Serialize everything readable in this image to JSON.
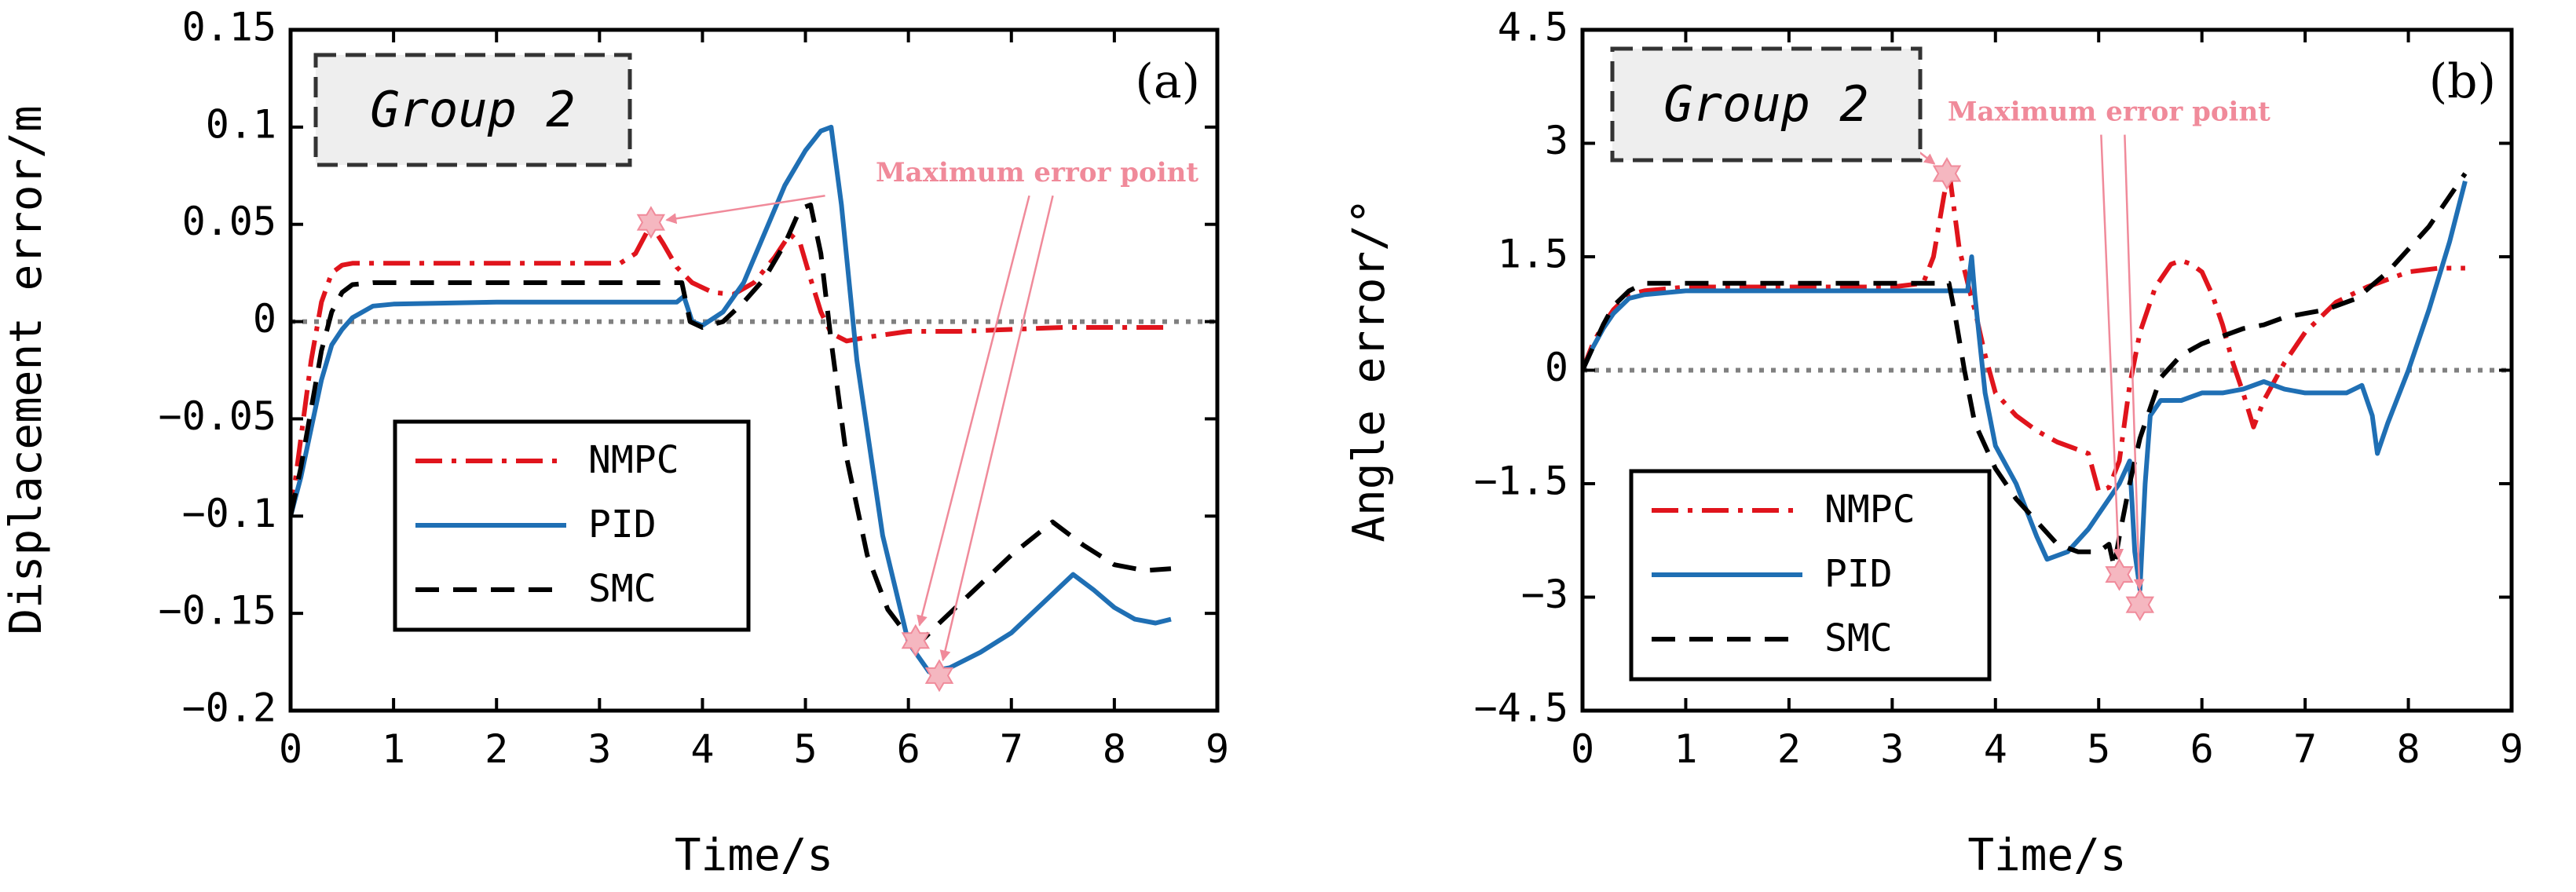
{
  "colors": {
    "NMPC": "#e0141c",
    "PID": "#1f6fb4",
    "SMC": "#000000",
    "zero_line": "#808080",
    "annotation": "#f08a9a",
    "marker": "#f5b7c0",
    "group_box_fill": "#eeeeee"
  },
  "chart_data": [
    {
      "type": "line",
      "panel_tag": "(a)",
      "group_label": "Group 2",
      "xlabel": "Time/s",
      "ylabel": "Displacement error/m",
      "xlim": [
        0,
        9
      ],
      "ylim": [
        -0.2,
        0.15
      ],
      "xticks": [
        0,
        1,
        2,
        3,
        4,
        5,
        6,
        7,
        8,
        9
      ],
      "xtick_labels": [
        "0",
        "1",
        "2",
        "3",
        "4",
        "5",
        "6",
        "7",
        "8",
        "9"
      ],
      "yticks": [
        -0.2,
        -0.15,
        -0.1,
        -0.05,
        0,
        0.05,
        0.1,
        0.15
      ],
      "ytick_labels": [
        "−0.2",
        "−0.15",
        "−0.1",
        "−0.05",
        "0",
        "0.05",
        "0.1",
        "0.15"
      ],
      "grid": false,
      "zero_reference": 0,
      "legend_position": "lower-left",
      "series": [
        {
          "name": "NMPC",
          "style": "dashdot",
          "x": [
            0,
            0.1,
            0.2,
            0.3,
            0.4,
            0.5,
            0.6,
            0.8,
            1.0,
            2.0,
            3.0,
            3.2,
            3.35,
            3.5,
            3.62,
            3.75,
            3.9,
            4.1,
            4.3,
            4.5,
            4.7,
            4.85,
            4.95,
            5.05,
            5.15,
            5.25,
            5.4,
            5.6,
            6.0,
            6.5,
            7.0,
            7.5,
            8.0,
            8.55
          ],
          "y": [
            -0.1,
            -0.06,
            -0.02,
            0.01,
            0.025,
            0.029,
            0.03,
            0.03,
            0.03,
            0.03,
            0.03,
            0.03,
            0.035,
            0.05,
            0.04,
            0.028,
            0.02,
            0.015,
            0.014,
            0.02,
            0.033,
            0.045,
            0.04,
            0.022,
            0.005,
            -0.006,
            -0.01,
            -0.008,
            -0.005,
            -0.005,
            -0.004,
            -0.003,
            -0.003,
            -0.003
          ]
        },
        {
          "name": "PID",
          "style": "solid",
          "x": [
            0,
            0.1,
            0.2,
            0.3,
            0.4,
            0.5,
            0.6,
            0.8,
            1.0,
            2.0,
            3.0,
            3.5,
            3.75,
            3.82,
            3.9,
            4.0,
            4.2,
            4.4,
            4.6,
            4.8,
            5.0,
            5.15,
            5.25,
            5.35,
            5.5,
            5.75,
            6.0,
            6.2,
            6.4,
            6.7,
            7.0,
            7.3,
            7.6,
            7.8,
            8.0,
            8.2,
            8.4,
            8.55
          ],
          "y": [
            -0.1,
            -0.08,
            -0.055,
            -0.03,
            -0.012,
            -0.004,
            0.002,
            0.008,
            0.009,
            0.01,
            0.01,
            0.01,
            0.01,
            0.013,
            0.0,
            -0.002,
            0.005,
            0.02,
            0.045,
            0.07,
            0.088,
            0.098,
            0.1,
            0.06,
            -0.02,
            -0.11,
            -0.165,
            -0.18,
            -0.178,
            -0.17,
            -0.16,
            -0.145,
            -0.13,
            -0.138,
            -0.147,
            -0.153,
            -0.155,
            -0.153
          ]
        },
        {
          "name": "SMC",
          "style": "dashed",
          "x": [
            0,
            0.1,
            0.2,
            0.3,
            0.4,
            0.5,
            0.6,
            0.8,
            1.0,
            2.0,
            3.0,
            3.5,
            3.8,
            3.88,
            4.0,
            4.2,
            4.4,
            4.6,
            4.8,
            4.95,
            5.05,
            5.15,
            5.25,
            5.4,
            5.6,
            5.8,
            6.0,
            6.15,
            6.3,
            6.6,
            7.0,
            7.4,
            7.7,
            8.0,
            8.3,
            8.55
          ],
          "y": [
            -0.1,
            -0.075,
            -0.045,
            -0.015,
            0.005,
            0.015,
            0.019,
            0.02,
            0.02,
            0.02,
            0.02,
            0.02,
            0.02,
            0.0,
            -0.003,
            0.0,
            0.01,
            0.022,
            0.04,
            0.058,
            0.06,
            0.035,
            -0.01,
            -0.07,
            -0.12,
            -0.148,
            -0.162,
            -0.163,
            -0.155,
            -0.14,
            -0.12,
            -0.103,
            -0.115,
            -0.125,
            -0.128,
            -0.127
          ]
        }
      ],
      "max_error_points": [
        {
          "x": 3.5,
          "y": 0.051
        },
        {
          "x": 6.07,
          "y": -0.164
        },
        {
          "x": 6.3,
          "y": -0.182
        }
      ],
      "annotation": {
        "text": "Maximum error point",
        "x": 7.25,
        "y": 0.072
      }
    },
    {
      "type": "line",
      "panel_tag": "(b)",
      "group_label": "Group 2",
      "xlabel": "Time/s",
      "ylabel": "Angle error/°",
      "xlim": [
        0,
        9
      ],
      "ylim": [
        -4.5,
        4.5
      ],
      "xticks": [
        0,
        1,
        2,
        3,
        4,
        5,
        6,
        7,
        8,
        9
      ],
      "xtick_labels": [
        "0",
        "1",
        "2",
        "3",
        "4",
        "5",
        "6",
        "7",
        "8",
        "9"
      ],
      "yticks": [
        -4.5,
        -3,
        -1.5,
        0,
        1.5,
        3,
        4.5
      ],
      "ytick_labels": [
        "−4.5",
        "−3",
        "−1.5",
        "0",
        "1.5",
        "3",
        "4.5"
      ],
      "grid": false,
      "zero_reference": 0,
      "legend_position": "lower-left",
      "series": [
        {
          "name": "NMPC",
          "style": "dashdot",
          "x": [
            0,
            0.1,
            0.2,
            0.3,
            0.45,
            0.6,
            1.0,
            2.0,
            3.0,
            3.3,
            3.4,
            3.5,
            3.55,
            3.65,
            3.75,
            3.8,
            3.9,
            4.0,
            4.2,
            4.4,
            4.6,
            4.8,
            4.9,
            5.0,
            5.1,
            5.2,
            5.25,
            5.3,
            5.4,
            5.55,
            5.7,
            5.8,
            5.9,
            6.0,
            6.1,
            6.2,
            6.3,
            6.4,
            6.5,
            6.6,
            6.8,
            7.0,
            7.3,
            7.6,
            8.0,
            8.3,
            8.55
          ],
          "y": [
            0,
            0.35,
            0.6,
            0.8,
            1.0,
            1.05,
            1.1,
            1.1,
            1.1,
            1.15,
            1.5,
            2.3,
            2.65,
            1.6,
            1.05,
            0.8,
            0.2,
            -0.3,
            -0.6,
            -0.8,
            -0.95,
            -1.05,
            -1.1,
            -1.6,
            -1.55,
            -1.2,
            -0.7,
            -0.2,
            0.5,
            1.1,
            1.4,
            1.45,
            1.4,
            1.3,
            1.0,
            0.6,
            0.1,
            -0.3,
            -0.75,
            -0.4,
            0.1,
            0.5,
            0.9,
            1.1,
            1.3,
            1.35,
            1.35
          ]
        },
        {
          "name": "PID",
          "style": "solid",
          "x": [
            0,
            0.1,
            0.2,
            0.3,
            0.45,
            0.6,
            1.0,
            2.0,
            3.0,
            3.5,
            3.73,
            3.77,
            3.8,
            3.9,
            4.0,
            4.2,
            4.4,
            4.5,
            4.7,
            4.9,
            5.1,
            5.2,
            5.3,
            5.35,
            5.4,
            5.45,
            5.5,
            5.6,
            5.8,
            6.0,
            6.2,
            6.4,
            6.6,
            6.8,
            7.0,
            7.2,
            7.4,
            7.55,
            7.65,
            7.7,
            7.8,
            8.0,
            8.2,
            8.4,
            8.55
          ],
          "y": [
            0,
            0.3,
            0.55,
            0.75,
            0.95,
            1.0,
            1.05,
            1.05,
            1.05,
            1.05,
            1.05,
            1.5,
            1.0,
            -0.3,
            -1.0,
            -1.5,
            -2.2,
            -2.5,
            -2.4,
            -2.1,
            -1.7,
            -1.5,
            -1.2,
            -2.4,
            -2.9,
            -1.5,
            -0.6,
            -0.4,
            -0.4,
            -0.3,
            -0.3,
            -0.25,
            -0.15,
            -0.25,
            -0.3,
            -0.3,
            -0.3,
            -0.2,
            -0.6,
            -1.1,
            -0.7,
            0.0,
            0.8,
            1.7,
            2.5
          ]
        },
        {
          "name": "SMC",
          "style": "dashed",
          "x": [
            0,
            0.1,
            0.2,
            0.3,
            0.45,
            0.6,
            1.0,
            2.0,
            3.0,
            3.55,
            3.6,
            3.7,
            3.8,
            4.0,
            4.2,
            4.4,
            4.6,
            4.8,
            5.0,
            5.1,
            5.15,
            5.2,
            5.3,
            5.4,
            5.5,
            5.6,
            5.8,
            6.0,
            6.2,
            6.4,
            6.6,
            6.8,
            7.0,
            7.2,
            7.5,
            7.8,
            8.0,
            8.2,
            8.4,
            8.55
          ],
          "y": [
            0,
            0.3,
            0.6,
            0.85,
            1.05,
            1.15,
            1.15,
            1.15,
            1.15,
            1.15,
            0.8,
            0.0,
            -0.7,
            -1.3,
            -1.7,
            -2.0,
            -2.3,
            -2.4,
            -2.4,
            -2.3,
            -2.6,
            -2.2,
            -1.5,
            -0.9,
            -0.5,
            -0.1,
            0.2,
            0.35,
            0.45,
            0.55,
            0.6,
            0.7,
            0.75,
            0.8,
            0.95,
            1.3,
            1.6,
            1.9,
            2.3,
            2.6
          ]
        }
      ],
      "max_error_points": [
        {
          "x": 3.53,
          "y": 2.6
        },
        {
          "x": 5.2,
          "y": -2.7
        },
        {
          "x": 5.4,
          "y": -3.1
        }
      ],
      "annotation": {
        "text": "Maximum error point",
        "x": 5.1,
        "y": 3.3
      }
    }
  ]
}
